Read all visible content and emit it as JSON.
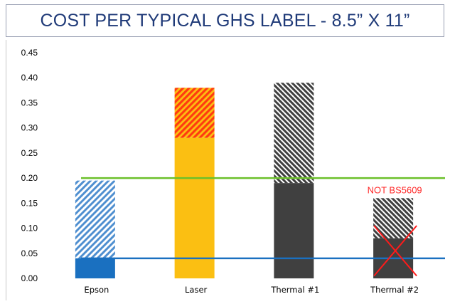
{
  "title": "COST PER TYPICAL GHS LABEL - 8.5” X 11”",
  "chart_data": {
    "type": "bar",
    "title": "COST PER TYPICAL GHS LABEL - 8.5” X 11”",
    "xlabel": "",
    "ylabel": "",
    "ylim": [
      0,
      0.45
    ],
    "yticks": [
      "0.00",
      "0.05",
      "0.10",
      "0.15",
      "0.20",
      "0.25",
      "0.30",
      "0.35",
      "0.40",
      "0.45"
    ],
    "grid": false,
    "categories": [
      "Epson",
      "Laser",
      "Thermal #1",
      "Thermal #2"
    ],
    "bars": [
      {
        "category": "Epson",
        "solid": 0.04,
        "total": 0.195,
        "solid_color": "#1a70c0",
        "hatch_color": "#4f8fd0"
      },
      {
        "category": "Laser",
        "solid": 0.28,
        "total": 0.38,
        "solid_color": "#fbbf12",
        "hatch_color": "#ff3b10"
      },
      {
        "category": "Thermal #1",
        "solid": 0.19,
        "total": 0.39,
        "solid_color": "#404040",
        "hatch_color": "#404040"
      },
      {
        "category": "Thermal #2",
        "solid": 0.08,
        "total": 0.16,
        "solid_color": "#404040",
        "hatch_color": "#404040"
      }
    ],
    "reference_lines": [
      {
        "value": 0.2,
        "color": "#6cc02a"
      },
      {
        "value": 0.04,
        "color": "#1a70c0"
      }
    ],
    "annotations": [
      {
        "text": "NOT BS5609",
        "category": "Thermal #2",
        "value": 0.175,
        "color": "#ff2a2a"
      }
    ],
    "crossed_out": [
      "Thermal #2"
    ]
  }
}
